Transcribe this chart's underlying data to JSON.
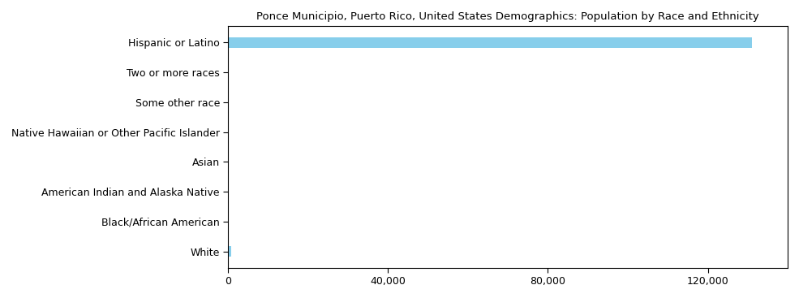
{
  "title": "Ponce Municipio, Puerto Rico, United States Demographics: Population by Race and Ethnicity",
  "categories": [
    "Hispanic or Latino",
    "Two or more races",
    "Some other race",
    "Native Hawaiian or Other Pacific Islander",
    "Asian",
    "American Indian and Alaska Native",
    "Black/African American",
    "White"
  ],
  "values": [
    131000,
    50,
    50,
    50,
    50,
    50,
    50,
    800
  ],
  "bar_color": "#87CEEB",
  "xlim": [
    0,
    140000
  ],
  "xticks": [
    0,
    40000,
    80000,
    120000
  ],
  "background_color": "#ffffff",
  "title_fontsize": 9.5,
  "label_fontsize": 9,
  "tick_fontsize": 9,
  "bar_height": 0.35
}
